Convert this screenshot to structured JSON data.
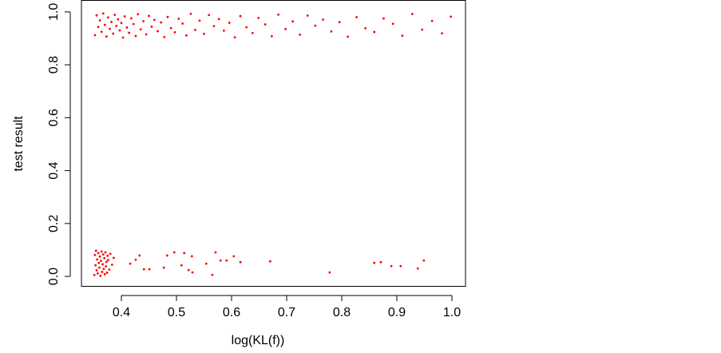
{
  "chart_data": {
    "type": "scatter",
    "x_label": "log(KL(f))",
    "y_label": "test result",
    "xlim": [
      0.3275,
      1.0246
    ],
    "ylim": [
      -0.036,
      1.045
    ],
    "xticks": [
      0.4,
      0.5,
      0.6,
      0.7,
      0.8,
      0.9,
      {
        "value": 1,
        "label": "1.0"
      }
    ],
    "yticks": [
      {
        "value": 0,
        "label": "0.0"
      },
      0.2,
      0.4,
      0.6,
      0.8,
      {
        "value": 1,
        "label": "1.0"
      }
    ],
    "series": [
      {
        "color": "#ff0000",
        "x": [
          0.352,
          0.355,
          0.358,
          0.361,
          0.364,
          0.367,
          0.37,
          0.373,
          0.376,
          0.379,
          0.382,
          0.385,
          0.388,
          0.391,
          0.394,
          0.397,
          0.4,
          0.403,
          0.406,
          0.41,
          0.414,
          0.418,
          0.422,
          0.426,
          0.43,
          0.435,
          0.44,
          0.445,
          0.45,
          0.455,
          0.46,
          0.466,
          0.472,
          0.478,
          0.484,
          0.49,
          0.497,
          0.504,
          0.511,
          0.518,
          0.526,
          0.534,
          0.542,
          0.55,
          0.559,
          0.568,
          0.577,
          0.586,
          0.596,
          0.606,
          0.616,
          0.627,
          0.638,
          0.649,
          0.661,
          0.673,
          0.685,
          0.698,
          0.711,
          0.724,
          0.738,
          0.752,
          0.766,
          0.781,
          0.796,
          0.811,
          0.827,
          0.843,
          0.859,
          0.876,
          0.893,
          0.91,
          0.928,
          0.946,
          0.964,
          0.982,
          0.998,
          0.351,
          0.352,
          0.353,
          0.354,
          0.355,
          0.356,
          0.357,
          0.358,
          0.359,
          0.36,
          0.361,
          0.362,
          0.363,
          0.364,
          0.365,
          0.366,
          0.367,
          0.368,
          0.369,
          0.37,
          0.371,
          0.372,
          0.373,
          0.374,
          0.375,
          0.376,
          0.378,
          0.38,
          0.383,
          0.386,
          0.441,
          0.451,
          0.477,
          0.483,
          0.496,
          0.509,
          0.514,
          0.522,
          0.529,
          0.528,
          0.554,
          0.565,
          0.571,
          0.58,
          0.591,
          0.604,
          0.616,
          0.67,
          0.778,
          0.859,
          0.871,
          0.89,
          0.907,
          0.938,
          0.949,
          0.416,
          0.426,
          0.433
        ],
        "values": [
          0.912,
          0.987,
          0.943,
          0.968,
          0.925,
          0.994,
          0.951,
          0.907,
          0.979,
          0.936,
          0.962,
          0.918,
          0.989,
          0.947,
          0.972,
          0.93,
          0.958,
          0.903,
          0.983,
          0.941,
          0.921,
          0.976,
          0.954,
          0.909,
          0.991,
          0.934,
          0.965,
          0.915,
          0.985,
          0.944,
          0.97,
          0.927,
          0.96,
          0.905,
          0.981,
          0.939,
          0.923,
          0.974,
          0.956,
          0.911,
          0.993,
          0.932,
          0.967,
          0.917,
          0.988,
          0.946,
          0.973,
          0.929,
          0.959,
          0.904,
          0.984,
          0.942,
          0.92,
          0.977,
          0.953,
          0.908,
          0.99,
          0.935,
          0.964,
          0.914,
          0.986,
          0.948,
          0.971,
          0.926,
          0.961,
          0.906,
          0.98,
          0.938,
          0.924,
          0.975,
          0.955,
          0.91,
          0.992,
          0.933,
          0.966,
          0.919,
          0.982,
          0.005,
          0.081,
          0.042,
          0.097,
          0.023,
          0.064,
          0.011,
          0.088,
          0.051,
          0.033,
          0.075,
          0.002,
          0.059,
          0.094,
          0.017,
          0.046,
          0.083,
          0.028,
          0.069,
          0.008,
          0.091,
          0.038,
          0.055,
          0.014,
          0.078,
          0.062,
          0.026,
          0.085,
          0.044,
          0.07,
          0.027,
          0.027,
          0.033,
          0.079,
          0.091,
          0.042,
          0.088,
          0.024,
          0.015,
          0.076,
          0.048,
          0.006,
          0.091,
          0.06,
          0.06,
          0.076,
          0.054,
          0.057,
          0.015,
          0.051,
          0.054,
          0.039,
          0.039,
          0.03,
          0.06,
          0.048,
          0.063,
          0.079
        ]
      }
    ]
  }
}
